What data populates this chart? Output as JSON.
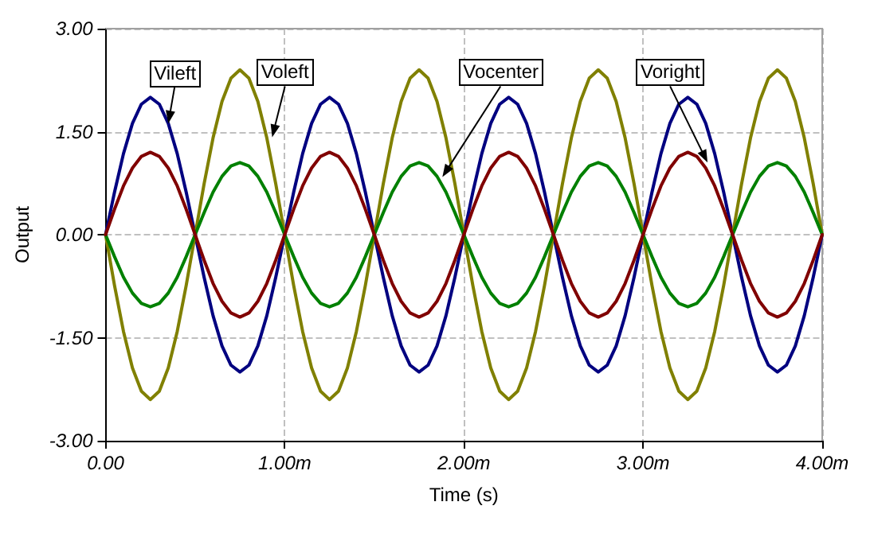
{
  "chart_data": {
    "type": "line",
    "xlabel": "Time (s)",
    "ylabel": "Output",
    "x": [
      0,
      0.05,
      0.1,
      0.15,
      0.2,
      0.25,
      0.3,
      0.35,
      0.4,
      0.45,
      0.5,
      0.55,
      0.6,
      0.65,
      0.7,
      0.75,
      0.8,
      0.85,
      0.9,
      0.95,
      1,
      1.05,
      1.1,
      1.15,
      1.2,
      1.25,
      1.3,
      1.35,
      1.4,
      1.45,
      1.5,
      1.55,
      1.6,
      1.65,
      1.7,
      1.75,
      1.8,
      1.85,
      1.9,
      1.95,
      2,
      2.05,
      2.1,
      2.15,
      2.2,
      2.25,
      2.3,
      2.35,
      2.4,
      2.45,
      2.5,
      2.55,
      2.6,
      2.65,
      2.7,
      2.75,
      2.8,
      2.85,
      2.9,
      2.95,
      3,
      3.05,
      3.1,
      3.15,
      3.2,
      3.25,
      3.3,
      3.35,
      3.4,
      3.45,
      3.5,
      3.55,
      3.6,
      3.65,
      3.7,
      3.75,
      3.8,
      3.85,
      3.9,
      3.95,
      4
    ],
    "series": [
      {
        "color": "#000080",
        "values": [
          0,
          0.62,
          1.18,
          1.62,
          1.9,
          2,
          1.9,
          1.62,
          1.18,
          0.62,
          0,
          -0.62,
          -1.18,
          -1.62,
          -1.9,
          -2,
          -1.9,
          -1.62,
          -1.18,
          -0.62,
          0,
          0.62,
          1.18,
          1.62,
          1.9,
          2,
          1.9,
          1.62,
          1.18,
          0.62,
          0,
          -0.62,
          -1.18,
          -1.62,
          -1.9,
          -2,
          -1.9,
          -1.62,
          -1.18,
          -0.62,
          0,
          0.62,
          1.18,
          1.62,
          1.9,
          2,
          1.9,
          1.62,
          1.18,
          0.62,
          0,
          -0.62,
          -1.18,
          -1.62,
          -1.9,
          -2,
          -1.9,
          -1.62,
          -1.18,
          -0.62,
          0,
          0.62,
          1.18,
          1.62,
          1.9,
          2,
          1.9,
          1.62,
          1.18,
          0.62,
          0,
          -0.62,
          -1.18,
          -1.62,
          -1.9,
          -2,
          -1.9,
          -1.62,
          -1.18,
          -0.62,
          0
        ]
      },
      {
        "color": "#808000",
        "values": [
          0,
          -0.74,
          -1.41,
          -1.94,
          -2.28,
          -2.4,
          -2.28,
          -1.94,
          -1.41,
          -0.74,
          0,
          0.74,
          1.41,
          1.94,
          2.28,
          2.4,
          2.28,
          1.94,
          1.41,
          0.74,
          0,
          -0.74,
          -1.41,
          -1.94,
          -2.28,
          -2.4,
          -2.28,
          -1.94,
          -1.41,
          -0.74,
          0,
          0.74,
          1.41,
          1.94,
          2.28,
          2.4,
          2.28,
          1.94,
          1.41,
          0.74,
          0,
          -0.74,
          -1.41,
          -1.94,
          -2.28,
          -2.4,
          -2.28,
          -1.94,
          -1.41,
          -0.74,
          0,
          0.74,
          1.41,
          1.94,
          2.28,
          2.4,
          2.28,
          1.94,
          1.41,
          0.74,
          0,
          -0.74,
          -1.41,
          -1.94,
          -2.28,
          -2.4,
          -2.28,
          -1.94,
          -1.41,
          -0.74,
          0,
          0.74,
          1.41,
          1.94,
          2.28,
          2.4,
          2.28,
          1.94,
          1.41,
          0.74,
          0
        ]
      },
      {
        "color": "#008000",
        "values": [
          0,
          -0.32,
          -0.62,
          -0.85,
          -1,
          -1.05,
          -1,
          -0.85,
          -0.62,
          -0.32,
          0,
          0.32,
          0.62,
          0.85,
          1,
          1.05,
          1,
          0.85,
          0.62,
          0.32,
          0,
          -0.32,
          -0.62,
          -0.85,
          -1,
          -1.05,
          -1,
          -0.85,
          -0.62,
          -0.32,
          0,
          0.32,
          0.62,
          0.85,
          1,
          1.05,
          1,
          0.85,
          0.62,
          0.32,
          0,
          -0.32,
          -0.62,
          -0.85,
          -1,
          -1.05,
          -1,
          -0.85,
          -0.62,
          -0.32,
          0,
          0.32,
          0.62,
          0.85,
          1,
          1.05,
          1,
          0.85,
          0.62,
          0.32,
          0,
          -0.32,
          -0.62,
          -0.85,
          -1,
          -1.05,
          -1,
          -0.85,
          -0.62,
          -0.32,
          0,
          0.32,
          0.62,
          0.85,
          1,
          1.05,
          1,
          0.85,
          0.62,
          0.32,
          0
        ]
      },
      {
        "color": "#800000",
        "values": [
          0,
          0.37,
          0.71,
          0.97,
          1.14,
          1.2,
          1.14,
          0.97,
          0.71,
          0.37,
          0,
          -0.37,
          -0.71,
          -0.97,
          -1.14,
          -1.2,
          -1.14,
          -0.97,
          -0.71,
          -0.37,
          0,
          0.37,
          0.71,
          0.97,
          1.14,
          1.2,
          1.14,
          0.97,
          0.71,
          0.37,
          0,
          -0.37,
          -0.71,
          -0.97,
          -1.14,
          -1.2,
          -1.14,
          -0.97,
          -0.71,
          -0.37,
          0,
          0.37,
          0.71,
          0.97,
          1.14,
          1.2,
          1.14,
          0.97,
          0.71,
          0.37,
          0,
          -0.37,
          -0.71,
          -0.97,
          -1.14,
          -1.2,
          -1.14,
          -0.97,
          -0.71,
          -0.37,
          0,
          0.37,
          0.71,
          0.97,
          1.14,
          1.2,
          1.14,
          0.97,
          0.71,
          0.37,
          0,
          -0.37,
          -0.71,
          -0.97,
          -1.14,
          -1.2,
          -1.14,
          -0.97,
          -0.71,
          -0.37,
          0
        ]
      }
    ],
    "annotations": [
      {
        "text": "Vileft",
        "x": 0.35,
        "y": 1.62
      },
      {
        "text": "Voleft",
        "x": 0.93,
        "y": 1.42
      },
      {
        "text": "Vocenter",
        "x": 1.88,
        "y": 0.84
      },
      {
        "text": "Voright",
        "x": 3.36,
        "y": 1.05
      }
    ],
    "xlim": [
      0,
      4
    ],
    "xticks": [
      {
        "value": 0,
        "label": "0.00"
      },
      {
        "value": 1,
        "label": "1.00m"
      },
      {
        "value": 2,
        "label": "2.00m"
      },
      {
        "value": 3,
        "label": "3.00m"
      },
      {
        "value": 4,
        "label": "4.00m"
      }
    ],
    "ylim": [
      -3,
      3
    ],
    "yticks": [
      {
        "value": -3,
        "label": "-3.00"
      },
      {
        "value": -1.5,
        "label": "-1.50"
      },
      {
        "value": 0,
        "label": "0.00"
      },
      {
        "value": 1.5,
        "label": "1.50"
      },
      {
        "value": 3,
        "label": "3.00"
      }
    ],
    "grid": true,
    "marker": "none",
    "line_style": "solid"
  }
}
